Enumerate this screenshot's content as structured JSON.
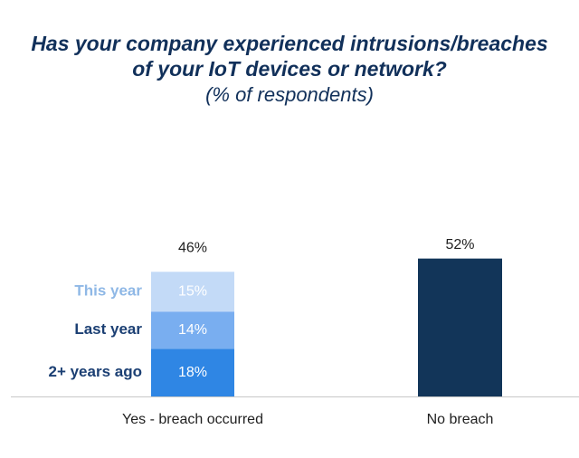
{
  "chart_data": {
    "type": "bar",
    "title_lines": [
      "Has your company experienced intrusions/breaches",
      "of your IoT devices or network?"
    ],
    "subtitle": "(% of respondents)",
    "categories": [
      "Yes - breach occurred",
      "No breach"
    ],
    "totals": [
      {
        "category": "Yes - breach occurred",
        "value": 46,
        "label": "46%"
      },
      {
        "category": "No breach",
        "value": 52,
        "label": "52%"
      }
    ],
    "stacked_segments": [
      {
        "name": "2+ years ago",
        "value": 18,
        "label": "18%",
        "color": "#2f86e4",
        "label_color": "#1b3f73",
        "text_color": "#ffffff"
      },
      {
        "name": "Last year",
        "value": 14,
        "label": "14%",
        "color": "#79aef0",
        "label_color": "#1b3f73",
        "text_color": "#ffffff"
      },
      {
        "name": "This year",
        "value": 15,
        "label": "15%",
        "color": "#c3daf7",
        "label_color": "#8fb8e6",
        "text_color": "#ffffff"
      }
    ],
    "no_breach": {
      "value": 52,
      "color": "#123559"
    },
    "ylim": [
      0,
      60
    ],
    "grid": false,
    "axis_line_color": "#c8c8c8"
  }
}
